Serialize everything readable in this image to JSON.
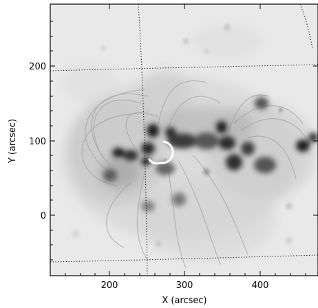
{
  "axes": {
    "xlabel": "X (arcsec)",
    "ylabel": "Y (arcsec)",
    "x_ticks": [
      "200",
      "300",
      "400"
    ],
    "y_ticks": [
      "200",
      "100",
      "0"
    ]
  },
  "image": {
    "kind": "solar coronal EUV image (inverted grayscale)",
    "colormap": "inverted gray",
    "grid": "dotted heliographic grid lines",
    "marker": "white semicircle arc"
  },
  "colors": {
    "background": "#ffffff",
    "frame": "#000000",
    "marker": "#ffffff"
  }
}
